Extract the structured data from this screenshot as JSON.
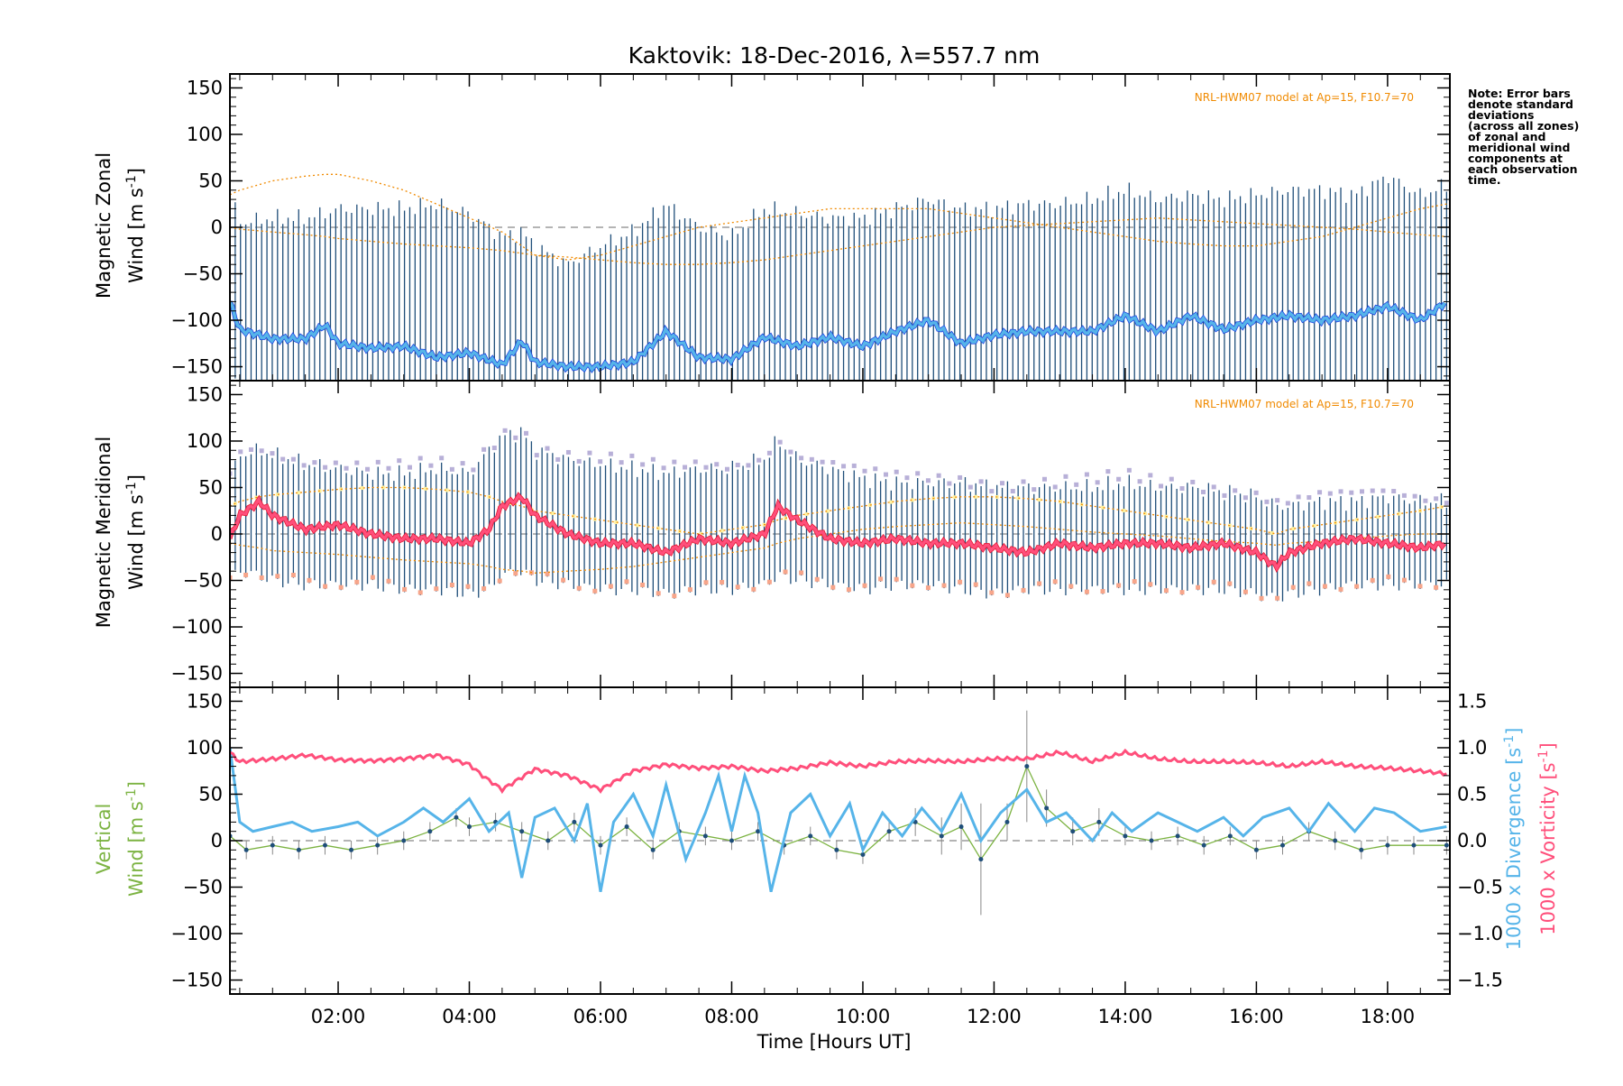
{
  "chart_data": [
    {
      "type": "line",
      "panel": "zonal",
      "title": "Kaktovik: 18-Dec-2016, λ=557.7 nm",
      "ylabel_line1": "Magnetic Zonal",
      "ylabel_line2": "Wind [m s",
      "ylabel_sup": "-1",
      "ylabel_close": "]",
      "ylim": [
        -165,
        165
      ],
      "yticks": [
        "150",
        "100",
        "50",
        "0",
        "−50",
        "−100",
        "−150"
      ],
      "ytick_values": [
        150,
        100,
        50,
        0,
        -50,
        -100,
        -150
      ],
      "model_label": "NRL-HWM07 model at Ap=15, F10.7=70",
      "note_lines": [
        "Note: Error bars",
        "denote standard",
        "deviations",
        "(across all zones)",
        "of zonal and",
        "meridional wind",
        "components at",
        "each observation",
        "time."
      ],
      "colors": {
        "mean": "#56b4e9",
        "mean_dark": "#1a3fe0",
        "errorbar": "#1f4e79",
        "model": "#f08a00",
        "zero": "#888888"
      },
      "x": [
        0.35,
        0.5,
        1.0,
        1.5,
        1.8,
        2.0,
        2.5,
        3.0,
        3.5,
        4.0,
        4.5,
        4.8,
        5.0,
        5.5,
        6.0,
        6.5,
        7.0,
        7.5,
        8.0,
        8.5,
        9.0,
        9.5,
        10.0,
        10.5,
        11.0,
        11.5,
        12.0,
        12.5,
        13.0,
        13.5,
        14.0,
        14.5,
        15.0,
        15.5,
        16.0,
        16.5,
        17.0,
        17.5,
        18.0,
        18.5,
        18.9
      ],
      "mean": [
        -80,
        -110,
        -120,
        -120,
        -105,
        -125,
        -130,
        -128,
        -140,
        -135,
        -148,
        -122,
        -145,
        -150,
        -150,
        -145,
        -112,
        -140,
        -142,
        -118,
        -128,
        -118,
        -128,
        -112,
        -100,
        -125,
        -116,
        -112,
        -112,
        -112,
        -95,
        -112,
        -95,
        -110,
        -100,
        -95,
        -100,
        -95,
        -85,
        -100,
        -80
      ],
      "upper": [
        40,
        5,
        10,
        10,
        15,
        20,
        20,
        20,
        25,
        15,
        -10,
        -5,
        -20,
        -40,
        -20,
        -5,
        25,
        0,
        -10,
        20,
        15,
        10,
        10,
        20,
        30,
        20,
        20,
        25,
        25,
        30,
        40,
        30,
        35,
        30,
        35,
        40,
        40,
        35,
        55,
        35,
        45
      ],
      "lower": [
        -160,
        -165,
        -165,
        -165,
        -165,
        -165,
        -165,
        -165,
        -165,
        -165,
        -165,
        -165,
        -165,
        -165,
        -165,
        -165,
        -165,
        -165,
        -165,
        -165,
        -165,
        -165,
        -165,
        -165,
        -165,
        -165,
        -165,
        -165,
        -165,
        -165,
        -165,
        -165,
        -165,
        -165,
        -165,
        -165,
        -165,
        -165,
        -165,
        -165,
        -165
      ],
      "model_a": [
        35,
        40,
        50,
        55,
        57,
        57,
        50,
        40,
        25,
        10,
        -5,
        -20,
        -30,
        -35,
        -30,
        -20,
        -10,
        0,
        5,
        10,
        15,
        20,
        20,
        20,
        20,
        15,
        10,
        5,
        0,
        -5,
        -10,
        -15,
        -18,
        -20,
        -20,
        -15,
        -10,
        0,
        10,
        20,
        25
      ],
      "model_b": [
        0,
        -2,
        -5,
        -8,
        -10,
        -12,
        -15,
        -18,
        -20,
        -22,
        -25,
        -28,
        -30,
        -32,
        -35,
        -38,
        -40,
        -40,
        -38,
        -35,
        -30,
        -25,
        -20,
        -15,
        -10,
        -5,
        0,
        2,
        4,
        6,
        8,
        10,
        8,
        6,
        4,
        2,
        0,
        -2,
        -5,
        -8,
        -10
      ]
    },
    {
      "type": "line",
      "panel": "meridional",
      "ylabel_line1": "Magnetic Meridional",
      "ylabel_line2": "Wind [m s",
      "ylabel_sup": "-1",
      "ylabel_close": "]",
      "ylim": [
        -165,
        165
      ],
      "yticks": [
        "150",
        "100",
        "50",
        "0",
        "−50",
        "−100",
        "−150"
      ],
      "ytick_values": [
        150,
        100,
        50,
        0,
        -50,
        -100,
        -150
      ],
      "model_label": "NRL-HWM07 model at Ap=15, F10.7=70",
      "colors": {
        "mean": "#ff4f7b",
        "mean_dark": "#e0142d",
        "errorbar": "#1f4e79",
        "points_high": "#b8b0d8",
        "points_low": "#f7a58a",
        "points_mid": "#fff2a0",
        "model": "#f08a00"
      },
      "x": [
        0.35,
        0.5,
        0.8,
        1.0,
        1.5,
        2.0,
        2.5,
        3.0,
        3.5,
        4.0,
        4.3,
        4.5,
        4.8,
        5.0,
        5.5,
        6.0,
        6.5,
        7.0,
        7.5,
        8.0,
        8.5,
        8.7,
        9.0,
        9.5,
        10.0,
        10.5,
        11.0,
        11.5,
        12.0,
        12.5,
        13.0,
        13.5,
        14.0,
        14.5,
        15.0,
        15.5,
        16.0,
        16.3,
        16.5,
        17.0,
        17.5,
        18.0,
        18.5,
        18.9
      ],
      "mean": [
        -5,
        20,
        35,
        20,
        5,
        10,
        0,
        -5,
        -5,
        -10,
        5,
        30,
        40,
        20,
        0,
        -10,
        -10,
        -20,
        -5,
        -10,
        0,
        30,
        15,
        -5,
        -10,
        -5,
        -10,
        -10,
        -15,
        -20,
        -10,
        -15,
        -10,
        -10,
        -15,
        -10,
        -20,
        -35,
        -20,
        -10,
        -5,
        -10,
        -15,
        -10
      ],
      "upper": [
        60,
        85,
        90,
        85,
        75,
        70,
        65,
        65,
        70,
        65,
        90,
        105,
        110,
        90,
        80,
        75,
        70,
        65,
        70,
        70,
        80,
        100,
        80,
        70,
        60,
        55,
        55,
        55,
        50,
        50,
        50,
        50,
        55,
        50,
        50,
        45,
        40,
        30,
        30,
        35,
        35,
        40,
        35,
        35
      ],
      "lower": [
        -50,
        -40,
        -45,
        -50,
        -55,
        -55,
        -55,
        -60,
        -60,
        -65,
        -60,
        -45,
        -40,
        -50,
        -55,
        -60,
        -60,
        -65,
        -60,
        -60,
        -55,
        -45,
        -50,
        -55,
        -60,
        -55,
        -55,
        -60,
        -65,
        -60,
        -60,
        -60,
        -60,
        -60,
        -60,
        -60,
        -65,
        -70,
        -65,
        -60,
        -55,
        -55,
        -55,
        -55
      ],
      "model_a": [
        30,
        35,
        40,
        42,
        45,
        48,
        50,
        50,
        48,
        45,
        40,
        35,
        30,
        25,
        20,
        15,
        10,
        5,
        0,
        5,
        10,
        15,
        20,
        25,
        30,
        35,
        38,
        40,
        40,
        38,
        35,
        30,
        25,
        20,
        15,
        10,
        5,
        0,
        5,
        10,
        15,
        20,
        25,
        30
      ],
      "model_b": [
        -10,
        -12,
        -15,
        -18,
        -20,
        -22,
        -25,
        -28,
        -30,
        -32,
        -35,
        -38,
        -40,
        -42,
        -40,
        -38,
        -35,
        -30,
        -25,
        -20,
        -15,
        -10,
        -5,
        0,
        5,
        8,
        10,
        12,
        10,
        8,
        5,
        2,
        0,
        -2,
        -5,
        -8,
        -10,
        -12,
        -10,
        -8,
        -5,
        -2,
        0,
        0
      ]
    },
    {
      "type": "line",
      "panel": "vertical",
      "ylabel_line1": "Vertical",
      "ylabel_line2": "Wind [m s",
      "ylabel_sup": "-1",
      "ylabel_close": "]",
      "ylim": [
        -165,
        165
      ],
      "yticks": [
        "150",
        "100",
        "50",
        "0",
        "−50",
        "−100",
        "−150"
      ],
      "ytick_values": [
        150,
        100,
        50,
        0,
        -50,
        -100,
        -150
      ],
      "y2label_div": "1000 x Divergence [s",
      "y2label_vort": "1000 x Vorticity [s",
      "y2label_sup": "-1",
      "y2label_close": "]",
      "y2lim": [
        -1.65,
        1.65
      ],
      "y2ticks": [
        "1.5",
        "1.0",
        "0.5",
        "0.0",
        "−0.5",
        "−1.0",
        "−1.5"
      ],
      "y2tick_values": [
        1.5,
        1.0,
        0.5,
        0.0,
        -0.5,
        -1.0,
        -1.5
      ],
      "xticks": [
        "02:00",
        "04:00",
        "06:00",
        "08:00",
        "10:00",
        "12:00",
        "14:00",
        "16:00",
        "18:00"
      ],
      "xtick_values": [
        2,
        4,
        6,
        8,
        10,
        12,
        14,
        16,
        18
      ],
      "xlim": [
        0.35,
        18.95
      ],
      "xlabel": "Time [Hours UT]",
      "colors": {
        "vertical": "#7cb342",
        "divergence": "#56b4e9",
        "vorticity": "#ff4f7b",
        "points": "#1f4e79",
        "errorbar": "#888888"
      },
      "vorticity_x": [
        0.35,
        0.5,
        1.0,
        1.5,
        2.0,
        2.5,
        3.0,
        3.5,
        4.0,
        4.2,
        4.5,
        5.0,
        5.5,
        6.0,
        6.5,
        7.0,
        7.5,
        8.0,
        8.5,
        9.0,
        9.5,
        10.0,
        10.5,
        11.0,
        11.5,
        12.0,
        12.5,
        13.0,
        13.5,
        14.0,
        14.5,
        15.0,
        15.5,
        16.0,
        16.5,
        17.0,
        17.5,
        18.0,
        18.5,
        18.9
      ],
      "vorticity": [
        0.95,
        0.85,
        0.88,
        0.92,
        0.87,
        0.86,
        0.88,
        0.92,
        0.82,
        0.7,
        0.55,
        0.77,
        0.7,
        0.55,
        0.75,
        0.82,
        0.78,
        0.8,
        0.75,
        0.78,
        0.84,
        0.8,
        0.85,
        0.86,
        0.85,
        0.88,
        0.88,
        0.95,
        0.85,
        0.95,
        0.88,
        0.85,
        0.85,
        0.84,
        0.8,
        0.85,
        0.8,
        0.78,
        0.75,
        0.72
      ],
      "divergence_x": [
        0.35,
        0.5,
        0.7,
        1.0,
        1.3,
        1.6,
        2.0,
        2.3,
        2.6,
        3.0,
        3.3,
        3.6,
        4.0,
        4.3,
        4.6,
        4.8,
        5.0,
        5.3,
        5.6,
        5.8,
        6.0,
        6.2,
        6.5,
        6.8,
        7.0,
        7.3,
        7.6,
        7.8,
        8.0,
        8.2,
        8.4,
        8.6,
        8.9,
        9.2,
        9.5,
        9.8,
        10.0,
        10.3,
        10.6,
        10.9,
        11.2,
        11.5,
        11.8,
        12.1,
        12.5,
        12.8,
        13.1,
        13.5,
        13.8,
        14.1,
        14.5,
        14.8,
        15.1,
        15.5,
        15.8,
        16.1,
        16.5,
        16.8,
        17.1,
        17.5,
        17.8,
        18.1,
        18.5,
        18.9
      ],
      "divergence": [
        1.0,
        0.2,
        0.1,
        0.15,
        0.2,
        0.1,
        0.15,
        0.2,
        0.05,
        0.2,
        0.35,
        0.2,
        0.45,
        0.1,
        0.3,
        -0.4,
        0.25,
        0.35,
        0.0,
        0.4,
        -0.55,
        0.2,
        0.5,
        0.05,
        0.6,
        -0.2,
        0.3,
        0.7,
        0.1,
        0.7,
        0.3,
        -0.55,
        0.3,
        0.5,
        0.05,
        0.4,
        -0.1,
        0.3,
        0.05,
        0.35,
        0.1,
        0.5,
        0.0,
        0.3,
        0.55,
        0.2,
        0.3,
        0.0,
        0.3,
        0.1,
        0.3,
        0.2,
        0.1,
        0.25,
        0.05,
        0.25,
        0.35,
        0.1,
        0.4,
        0.1,
        0.35,
        0.3,
        0.1,
        0.15
      ],
      "vertical_x": [
        0.35,
        0.6,
        1.0,
        1.4,
        1.8,
        2.2,
        2.6,
        3.0,
        3.4,
        3.8,
        4.0,
        4.4,
        4.8,
        5.2,
        5.6,
        6.0,
        6.4,
        6.8,
        7.2,
        7.6,
        8.0,
        8.4,
        8.8,
        9.2,
        9.6,
        10.0,
        10.4,
        10.8,
        11.2,
        11.5,
        11.8,
        12.2,
        12.5,
        12.8,
        13.2,
        13.6,
        14.0,
        14.4,
        14.8,
        15.2,
        15.6,
        16.0,
        16.4,
        16.8,
        17.2,
        17.6,
        18.0,
        18.4,
        18.9
      ],
      "vertical": [
        5,
        -10,
        -5,
        -10,
        -5,
        -10,
        -5,
        0,
        10,
        25,
        15,
        20,
        10,
        0,
        20,
        -5,
        15,
        -10,
        10,
        5,
        0,
        10,
        -5,
        5,
        -10,
        -15,
        10,
        20,
        5,
        15,
        -20,
        20,
        80,
        35,
        10,
        20,
        5,
        0,
        5,
        -5,
        5,
        -10,
        -5,
        10,
        0,
        -10,
        -5,
        -5,
        -5
      ],
      "vertical_err": [
        15,
        10,
        10,
        10,
        10,
        10,
        10,
        10,
        10,
        10,
        10,
        10,
        10,
        10,
        10,
        10,
        10,
        10,
        10,
        10,
        10,
        10,
        10,
        10,
        10,
        10,
        10,
        15,
        20,
        25,
        60,
        20,
        60,
        20,
        15,
        15,
        10,
        10,
        10,
        10,
        10,
        10,
        10,
        10,
        10,
        10,
        10,
        10,
        10
      ]
    }
  ]
}
